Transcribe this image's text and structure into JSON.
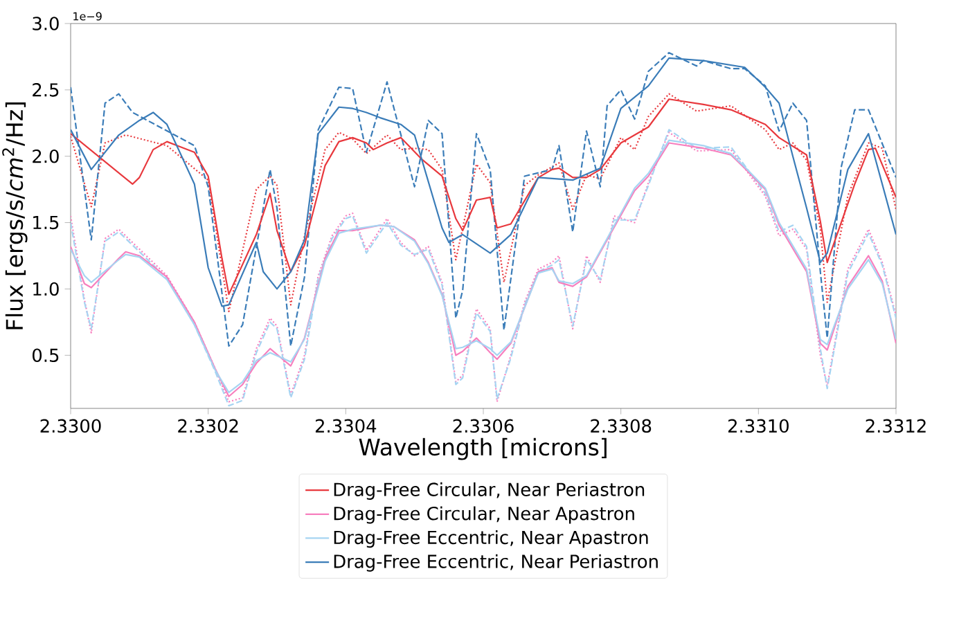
{
  "chart_data": {
    "type": "line",
    "xlabel": "Wavelength [microns]",
    "ylabel": "Flux [ergs/s/*cm*$^{2}$/Hz]",
    "annotations": [
      "1e−9"
    ],
    "xlim": [
      2.33,
      2.3312
    ],
    "ylim": [
      0.1,
      3.0
    ],
    "xticks": [
      {
        "value": 2.33,
        "label": "2.3300"
      },
      {
        "value": 2.3302,
        "label": "2.3302"
      },
      {
        "value": 2.3304,
        "label": "2.3304"
      },
      {
        "value": 2.3306,
        "label": "2.3306"
      },
      {
        "value": 2.3308,
        "label": "2.3308"
      },
      {
        "value": 2.331,
        "label": "2.3310"
      },
      {
        "value": 2.3312,
        "label": "2.3312"
      }
    ],
    "yticks": [
      {
        "value": 0.5,
        "label": "0.5"
      },
      {
        "value": 1.0,
        "label": "1.0"
      },
      {
        "value": 1.5,
        "label": "1.5"
      },
      {
        "value": 2.0,
        "label": "2.0"
      },
      {
        "value": 2.5,
        "label": "2.5"
      },
      {
        "value": 3.0,
        "label": "3.0"
      }
    ],
    "legend": "bottom",
    "grid": false,
    "series": [
      {
        "color": "#e8383d",
        "line_style": "dotted",
        "x": [
          2.33,
          2.33003,
          2.33005,
          2.33008,
          2.33014,
          2.3302,
          2.33023,
          2.33027,
          2.33029,
          2.3303,
          2.33032,
          2.33034,
          2.33037,
          2.33039,
          2.33041,
          2.33043,
          2.33046,
          2.33048,
          2.3305,
          2.33052,
          2.33054,
          2.33056,
          2.33057,
          2.33059,
          2.33061,
          2.33063,
          2.33066,
          2.33068,
          2.33071,
          2.33073,
          2.33075,
          2.33077,
          2.3308,
          2.33082,
          2.33084,
          2.33087,
          2.33091,
          2.33096,
          2.33101,
          2.33103,
          2.33105,
          2.33107,
          2.33109,
          2.3311,
          2.33113,
          2.33116,
          2.33118,
          2.3312
        ],
        "values": [
          2.15,
          1.62,
          2.1,
          2.16,
          2.08,
          1.82,
          0.83,
          1.75,
          1.85,
          1.78,
          0.88,
          1.4,
          2.05,
          2.18,
          2.13,
          2.02,
          2.16,
          2.05,
          2.06,
          2.05,
          1.9,
          1.22,
          1.46,
          1.94,
          1.8,
          1.05,
          1.78,
          1.86,
          1.95,
          1.6,
          1.86,
          1.83,
          2.14,
          2.05,
          2.3,
          2.47,
          2.34,
          2.38,
          2.2,
          2.05,
          2.1,
          1.97,
          1.45,
          0.9,
          1.7,
          2.1,
          2.06,
          1.6
        ]
      },
      {
        "color": "#f77fbe",
        "line_style": "dotted",
        "x": [
          2.33,
          2.33002,
          2.33003,
          2.33005,
          2.33007,
          2.3301,
          2.33014,
          2.33018,
          2.33021,
          2.33023,
          2.33025,
          2.33027,
          2.33029,
          2.3303,
          2.33032,
          2.33034,
          2.33036,
          2.33038,
          2.3304,
          2.33041,
          2.33043,
          2.33046,
          2.33048,
          2.3305,
          2.33052,
          2.33054,
          2.33056,
          2.33057,
          2.33059,
          2.33061,
          2.33062,
          2.33064,
          2.33066,
          2.33068,
          2.3307,
          2.33071,
          2.33073,
          2.33075,
          2.33077,
          2.33079,
          2.33082,
          2.33084,
          2.33087,
          2.33091,
          2.33096,
          2.33101,
          2.33103,
          2.33105,
          2.33107,
          2.33109,
          2.3311,
          2.33113,
          2.33116,
          2.33118,
          2.3312
        ],
        "values": [
          1.55,
          0.92,
          0.67,
          1.38,
          1.45,
          1.3,
          1.1,
          0.75,
          0.4,
          0.15,
          0.18,
          0.55,
          0.78,
          0.72,
          0.2,
          0.5,
          1.1,
          1.4,
          1.55,
          1.57,
          1.29,
          1.53,
          1.35,
          1.25,
          1.32,
          1.05,
          0.3,
          0.35,
          0.85,
          0.7,
          0.15,
          0.5,
          0.9,
          1.15,
          1.2,
          1.25,
          0.7,
          1.25,
          1.05,
          1.55,
          1.5,
          1.8,
          2.18,
          2.04,
          2.05,
          1.7,
          1.4,
          1.45,
          1.3,
          0.5,
          0.27,
          1.15,
          1.45,
          1.2,
          0.8
        ]
      },
      {
        "color": "#a6d4f2",
        "line_style": "dashed",
        "x": [
          2.33,
          2.33002,
          2.33003,
          2.33005,
          2.33007,
          2.3301,
          2.33014,
          2.33018,
          2.33021,
          2.33023,
          2.33025,
          2.33027,
          2.33029,
          2.3303,
          2.33032,
          2.33034,
          2.33036,
          2.33038,
          2.3304,
          2.33041,
          2.33043,
          2.33046,
          2.33048,
          2.3305,
          2.33052,
          2.33054,
          2.33056,
          2.33057,
          2.33059,
          2.33061,
          2.33062,
          2.33064,
          2.33066,
          2.33068,
          2.3307,
          2.33071,
          2.33073,
          2.33075,
          2.33077,
          2.33079,
          2.33082,
          2.33084,
          2.33087,
          2.33091,
          2.33096,
          2.33101,
          2.33103,
          2.33105,
          2.33107,
          2.33109,
          2.3311,
          2.33113,
          2.33116,
          2.33118,
          2.3312
        ],
        "values": [
          1.5,
          0.9,
          0.7,
          1.36,
          1.43,
          1.28,
          1.08,
          0.73,
          0.38,
          0.12,
          0.16,
          0.52,
          0.75,
          0.7,
          0.18,
          0.47,
          1.08,
          1.38,
          1.53,
          1.55,
          1.27,
          1.5,
          1.33,
          1.26,
          1.3,
          1.03,
          0.28,
          0.33,
          0.82,
          0.68,
          0.17,
          0.48,
          0.88,
          1.13,
          1.18,
          1.22,
          0.72,
          1.22,
          1.07,
          1.52,
          1.52,
          1.78,
          2.2,
          2.06,
          2.07,
          1.72,
          1.43,
          1.48,
          1.32,
          0.55,
          0.25,
          1.12,
          1.42,
          1.18,
          0.78
        ]
      },
      {
        "color": "#3a7cb8",
        "line_style": "dashed",
        "x": [
          2.33,
          2.33003,
          2.33005,
          2.33007,
          2.33009,
          2.33018,
          2.3302,
          2.33023,
          2.33025,
          2.33029,
          2.3303,
          2.33032,
          2.33034,
          2.33036,
          2.33039,
          2.33041,
          2.33043,
          2.33046,
          2.3305,
          2.33052,
          2.33054,
          2.33056,
          2.33057,
          2.33059,
          2.33061,
          2.33063,
          2.33066,
          2.3307,
          2.33071,
          2.33073,
          2.33075,
          2.33077,
          2.33078,
          2.3308,
          2.33082,
          2.33084,
          2.33087,
          2.33091,
          2.33092,
          2.33096,
          2.33098,
          2.33101,
          2.33103,
          2.33105,
          2.33107,
          2.33109,
          2.3311,
          2.33112,
          2.33114,
          2.33116,
          2.3312
        ],
        "values": [
          2.52,
          1.37,
          2.4,
          2.47,
          2.33,
          2.08,
          1.77,
          0.57,
          0.73,
          1.9,
          1.61,
          0.57,
          1.09,
          2.2,
          2.52,
          2.51,
          2.03,
          2.56,
          1.77,
          2.27,
          2.17,
          0.78,
          0.99,
          2.17,
          1.9,
          0.69,
          1.85,
          1.9,
          2.08,
          1.43,
          2.19,
          1.77,
          2.38,
          2.5,
          2.28,
          2.64,
          2.78,
          2.68,
          2.72,
          2.66,
          2.66,
          2.53,
          2.19,
          2.4,
          2.27,
          1.13,
          0.63,
          1.91,
          2.35,
          2.35,
          1.84
        ]
      },
      {
        "name": "Drag-Free Circular, Near Periastron",
        "color": "#e8383d",
        "line_style": "solid",
        "x": [
          2.33,
          2.33009,
          2.3301,
          2.33012,
          2.33014,
          2.33018,
          2.3302,
          2.33022,
          2.33023,
          2.33027,
          2.33029,
          2.3303,
          2.33032,
          2.33034,
          2.33037,
          2.33039,
          2.33041,
          2.33043,
          2.33044,
          2.33046,
          2.33048,
          2.33051,
          2.33054,
          2.33056,
          2.33057,
          2.33059,
          2.33061,
          2.33062,
          2.33064,
          2.33068,
          2.3307,
          2.33071,
          2.33073,
          2.33075,
          2.33077,
          2.3308,
          2.33084,
          2.33087,
          2.33092,
          2.33096,
          2.33101,
          2.33103,
          2.33107,
          2.33109,
          2.3311,
          2.33114,
          2.33116,
          2.33117,
          2.3312
        ],
        "values": [
          2.17,
          1.79,
          1.84,
          2.05,
          2.11,
          2.03,
          1.85,
          1.23,
          0.96,
          1.41,
          1.72,
          1.44,
          1.13,
          1.33,
          1.93,
          2.11,
          2.14,
          2.1,
          2.05,
          2.1,
          2.14,
          1.98,
          1.85,
          1.53,
          1.44,
          1.67,
          1.69,
          1.46,
          1.49,
          1.84,
          1.9,
          1.91,
          1.84,
          1.84,
          1.9,
          2.1,
          2.22,
          2.43,
          2.39,
          2.35,
          2.24,
          2.14,
          2.01,
          1.51,
          1.2,
          1.79,
          2.05,
          2.06,
          1.69
        ]
      },
      {
        "name": "Drag-Free Circular, Near Apastron",
        "color": "#f77fbe",
        "line_style": "solid",
        "x": [
          2.33,
          2.33002,
          2.33003,
          2.33007,
          2.33008,
          2.3301,
          2.33014,
          2.33018,
          2.33021,
          2.33023,
          2.33025,
          2.33027,
          2.33029,
          2.33032,
          2.33034,
          2.33037,
          2.33039,
          2.33041,
          2.33045,
          2.33047,
          2.3305,
          2.33052,
          2.33054,
          2.33056,
          2.33057,
          2.33059,
          2.33061,
          2.33062,
          2.33064,
          2.33068,
          2.3307,
          2.33071,
          2.33073,
          2.33075,
          2.33078,
          2.33082,
          2.33084,
          2.33087,
          2.33092,
          2.33096,
          2.33098,
          2.33101,
          2.33103,
          2.33107,
          2.33109,
          2.3311,
          2.33113,
          2.33116,
          2.33118,
          2.3312
        ],
        "values": [
          1.32,
          1.04,
          1.01,
          1.23,
          1.28,
          1.25,
          1.09,
          0.75,
          0.4,
          0.19,
          0.28,
          0.44,
          0.55,
          0.42,
          0.63,
          1.23,
          1.44,
          1.44,
          1.48,
          1.47,
          1.37,
          1.2,
          0.96,
          0.5,
          0.53,
          0.63,
          0.52,
          0.47,
          0.59,
          1.13,
          1.16,
          1.05,
          1.02,
          1.09,
          1.37,
          1.74,
          1.85,
          2.1,
          2.06,
          2.01,
          1.91,
          1.75,
          1.48,
          1.13,
          0.59,
          0.54,
          1.02,
          1.25,
          1.06,
          0.59
        ]
      },
      {
        "name": "Drag-Free Eccentric, Near Apastron",
        "color": "#a6d4f2",
        "line_style": "solid",
        "x": [
          2.33,
          2.33002,
          2.33003,
          2.33007,
          2.33008,
          2.3301,
          2.33014,
          2.33018,
          2.33021,
          2.33023,
          2.33025,
          2.33027,
          2.33029,
          2.33032,
          2.33034,
          2.33037,
          2.33039,
          2.33041,
          2.33045,
          2.33047,
          2.3305,
          2.33052,
          2.33054,
          2.33056,
          2.33057,
          2.33059,
          2.33061,
          2.33062,
          2.33064,
          2.33068,
          2.3307,
          2.33071,
          2.33073,
          2.33075,
          2.33078,
          2.33082,
          2.33084,
          2.33087,
          2.33092,
          2.33096,
          2.33098,
          2.33101,
          2.33103,
          2.33107,
          2.33109,
          2.3311,
          2.33113,
          2.33116,
          2.33118,
          2.3312
        ],
        "values": [
          1.3,
          1.1,
          1.05,
          1.22,
          1.26,
          1.24,
          1.07,
          0.73,
          0.39,
          0.22,
          0.3,
          0.46,
          0.52,
          0.45,
          0.62,
          1.21,
          1.42,
          1.45,
          1.48,
          1.47,
          1.36,
          1.19,
          0.95,
          0.55,
          0.56,
          0.61,
          0.55,
          0.5,
          0.6,
          1.12,
          1.15,
          1.06,
          1.04,
          1.1,
          1.38,
          1.76,
          1.87,
          2.12,
          2.08,
          2.02,
          1.92,
          1.76,
          1.5,
          1.15,
          0.62,
          0.58,
          1.0,
          1.22,
          1.04,
          0.62
        ]
      },
      {
        "name": "Drag-Free Eccentric, Near Periastron",
        "color": "#3a7cb8",
        "line_style": "solid",
        "x": [
          2.33,
          2.33003,
          2.33007,
          2.3301,
          2.33012,
          2.33014,
          2.33018,
          2.3302,
          2.33022,
          2.33023,
          2.33027,
          2.33028,
          2.3303,
          2.33032,
          2.33034,
          2.33036,
          2.33039,
          2.33041,
          2.33043,
          2.33045,
          2.33048,
          2.3305,
          2.33054,
          2.33055,
          2.33057,
          2.33061,
          2.33064,
          2.33068,
          2.33073,
          2.33077,
          2.3308,
          2.33084,
          2.33087,
          2.33092,
          2.33098,
          2.33101,
          2.33103,
          2.33105,
          2.33107,
          2.33109,
          2.3311,
          2.33113,
          2.33116,
          2.3312
        ],
        "values": [
          2.2,
          1.9,
          2.16,
          2.27,
          2.33,
          2.24,
          1.79,
          1.16,
          0.87,
          0.88,
          1.35,
          1.13,
          1.0,
          1.13,
          1.37,
          2.17,
          2.37,
          2.36,
          2.33,
          2.29,
          2.24,
          2.16,
          1.46,
          1.35,
          1.41,
          1.27,
          1.41,
          1.84,
          1.82,
          1.91,
          2.36,
          2.53,
          2.74,
          2.72,
          2.67,
          2.52,
          2.4,
          2.0,
          1.61,
          1.2,
          1.27,
          1.9,
          2.17,
          1.41
        ]
      }
    ]
  }
}
